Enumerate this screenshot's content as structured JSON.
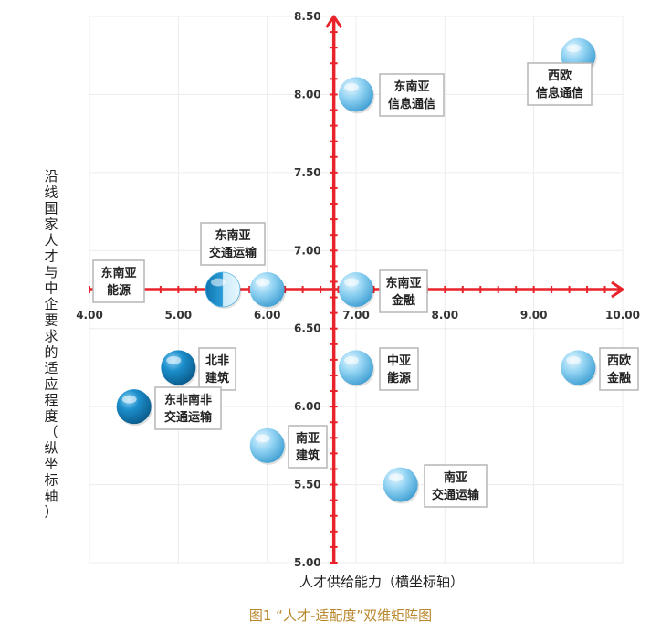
{
  "chart_data": {
    "type": "scatter",
    "caption": "图1 “人才-适配度”双维矩阵图",
    "xlabel": "人才供给能力（横坐标轴）",
    "ylabel": "沿线国家人才与中企要求的适应程度（纵坐标轴）",
    "xlim": [
      4.0,
      10.0
    ],
    "ylim": [
      5.0,
      8.5
    ],
    "x_ticks": [
      "4.00",
      "5.00",
      "6.00",
      "7.00",
      "8.00",
      "9.00",
      "10.00"
    ],
    "y_ticks": [
      "5.00",
      "5.50",
      "6.00",
      "6.50",
      "7.00",
      "7.50",
      "8.00",
      "8.50"
    ],
    "cross_x": 6.75,
    "cross_y": 6.75,
    "grid": true,
    "colors": {
      "axis": "#e8232a",
      "grid": "#ececec",
      "bubble_light": "#8fd0f2",
      "bubble_dark": "#1f8fc8",
      "caption": "#b8862b"
    },
    "points": [
      {
        "x": 9.5,
        "y": 8.25,
        "tone": "light",
        "label": [
          "西欧",
          "信息通信"
        ]
      },
      {
        "x": 7.0,
        "y": 8.0,
        "tone": "light",
        "label": [
          "东南亚",
          "信息通信"
        ]
      },
      {
        "x": 6.0,
        "y": 6.75,
        "tone": "light",
        "label": [
          "东南亚",
          "交通运输"
        ]
      },
      {
        "x": 5.5,
        "y": 6.75,
        "tone": "half",
        "label": [
          "东南亚",
          "能源"
        ]
      },
      {
        "x": 7.0,
        "y": 6.75,
        "tone": "light",
        "label": [
          "东南亚",
          "金融"
        ]
      },
      {
        "x": 5.0,
        "y": 6.25,
        "tone": "dark",
        "label": [
          "北非",
          "建筑"
        ]
      },
      {
        "x": 7.0,
        "y": 6.25,
        "tone": "light",
        "label": [
          "中亚",
          "能源"
        ]
      },
      {
        "x": 9.5,
        "y": 6.25,
        "tone": "light",
        "label": [
          "西欧",
          "金融"
        ]
      },
      {
        "x": 4.5,
        "y": 6.0,
        "tone": "dark",
        "label": [
          "东非南非",
          "交通运输"
        ]
      },
      {
        "x": 6.0,
        "y": 5.75,
        "tone": "light",
        "label": [
          "南亚",
          "建筑"
        ]
      },
      {
        "x": 7.5,
        "y": 5.5,
        "tone": "light",
        "label": [
          "南亚",
          "交通运输"
        ]
      }
    ]
  }
}
